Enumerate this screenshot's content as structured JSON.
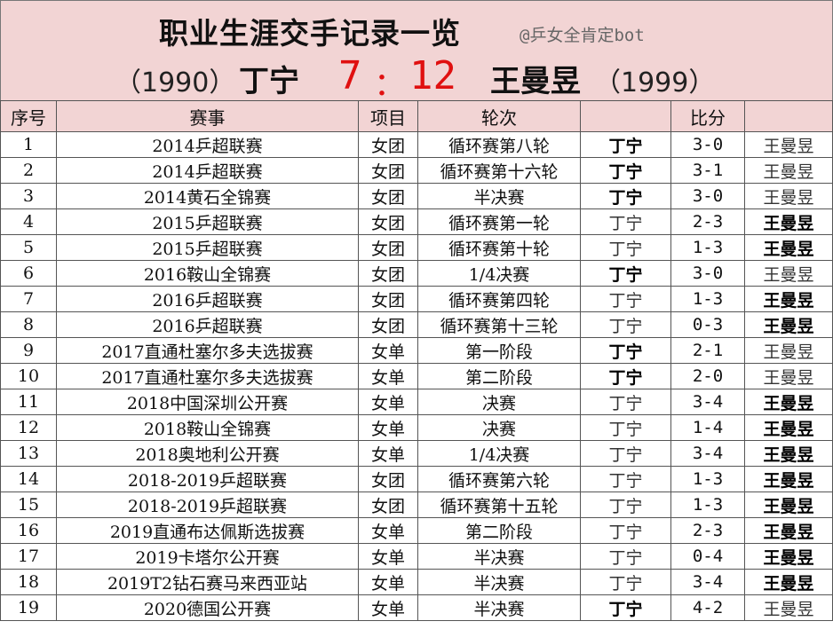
{
  "header": {
    "title": "职业生涯交手记录一览",
    "watermark": "@乒女全肯定bot",
    "player1_year": "（1990）",
    "player1_name": "丁宁",
    "score_left": "7",
    "score_colon": "：",
    "score_right": "12",
    "player2_name": "王曼昱",
    "player2_year": "（1999）"
  },
  "colors": {
    "header_bg": "#f2d4d4",
    "score_red": "#e01010",
    "grid": "#555555"
  },
  "columns": [
    "序号",
    "赛事",
    "项目",
    "轮次",
    "",
    "比分",
    ""
  ],
  "rows": [
    {
      "no": "1",
      "event": "2014乒超联赛",
      "type": "女团",
      "round": "循环赛第八轮",
      "p1": "丁宁",
      "score": "3-0",
      "p2": "王曼昱",
      "winner": "p1"
    },
    {
      "no": "2",
      "event": "2014乒超联赛",
      "type": "女团",
      "round": "循环赛第十六轮",
      "p1": "丁宁",
      "score": "3-1",
      "p2": "王曼昱",
      "winner": "p1"
    },
    {
      "no": "3",
      "event": "2014黄石全锦赛",
      "type": "女团",
      "round": "半决赛",
      "p1": "丁宁",
      "score": "3-0",
      "p2": "王曼昱",
      "winner": "p1"
    },
    {
      "no": "4",
      "event": "2015乒超联赛",
      "type": "女团",
      "round": "循环赛第一轮",
      "p1": "丁宁",
      "score": "2-3",
      "p2": "王曼昱",
      "winner": "p2"
    },
    {
      "no": "5",
      "event": "2015乒超联赛",
      "type": "女团",
      "round": "循环赛第十轮",
      "p1": "丁宁",
      "score": "1-3",
      "p2": "王曼昱",
      "winner": "p2"
    },
    {
      "no": "6",
      "event": "2016鞍山全锦赛",
      "type": "女团",
      "round": "1/4决赛",
      "p1": "丁宁",
      "score": "3-0",
      "p2": "王曼昱",
      "winner": "p1"
    },
    {
      "no": "7",
      "event": "2016乒超联赛",
      "type": "女团",
      "round": "循环赛第四轮",
      "p1": "丁宁",
      "score": "1-3",
      "p2": "王曼昱",
      "winner": "p2"
    },
    {
      "no": "8",
      "event": "2016乒超联赛",
      "type": "女团",
      "round": "循环赛第十三轮",
      "p1": "丁宁",
      "score": "0-3",
      "p2": "王曼昱",
      "winner": "p2"
    },
    {
      "no": "9",
      "event": "2017直通杜塞尔多夫选拔赛",
      "type": "女单",
      "round": "第一阶段",
      "p1": "丁宁",
      "score": "2-1",
      "p2": "王曼昱",
      "winner": "p1"
    },
    {
      "no": "10",
      "event": "2017直通杜塞尔多夫选拔赛",
      "type": "女单",
      "round": "第二阶段",
      "p1": "丁宁",
      "score": "2-0",
      "p2": "王曼昱",
      "winner": "p1"
    },
    {
      "no": "11",
      "event": "2018中国深圳公开赛",
      "type": "女单",
      "round": "决赛",
      "p1": "丁宁",
      "score": "3-4",
      "p2": "王曼昱",
      "winner": "p2"
    },
    {
      "no": "12",
      "event": "2018鞍山全锦赛",
      "type": "女单",
      "round": "决赛",
      "p1": "丁宁",
      "score": "1-4",
      "p2": "王曼昱",
      "winner": "p2"
    },
    {
      "no": "13",
      "event": "2018奥地利公开赛",
      "type": "女单",
      "round": "1/4决赛",
      "p1": "丁宁",
      "score": "3-4",
      "p2": "王曼昱",
      "winner": "p2"
    },
    {
      "no": "14",
      "event": "2018-2019乒超联赛",
      "type": "女团",
      "round": "循环赛第六轮",
      "p1": "丁宁",
      "score": "1-3",
      "p2": "王曼昱",
      "winner": "p2"
    },
    {
      "no": "15",
      "event": "2018-2019乒超联赛",
      "type": "女团",
      "round": "循环赛第十五轮",
      "p1": "丁宁",
      "score": "1-3",
      "p2": "王曼昱",
      "winner": "p2"
    },
    {
      "no": "16",
      "event": "2019直通布达佩斯选拔赛",
      "type": "女单",
      "round": "第二阶段",
      "p1": "丁宁",
      "score": "2-3",
      "p2": "王曼昱",
      "winner": "p2"
    },
    {
      "no": "17",
      "event": "2019卡塔尔公开赛",
      "type": "女单",
      "round": "半决赛",
      "p1": "丁宁",
      "score": "0-4",
      "p2": "王曼昱",
      "winner": "p2"
    },
    {
      "no": "18",
      "event": "2019T2钻石赛马来西亚站",
      "type": "女单",
      "round": "半决赛",
      "p1": "丁宁",
      "score": "3-4",
      "p2": "王曼昱",
      "winner": "p2"
    },
    {
      "no": "19",
      "event": "2020德国公开赛",
      "type": "女单",
      "round": "半决赛",
      "p1": "丁宁",
      "score": "4-2",
      "p2": "王曼昱",
      "winner": "p1"
    }
  ]
}
